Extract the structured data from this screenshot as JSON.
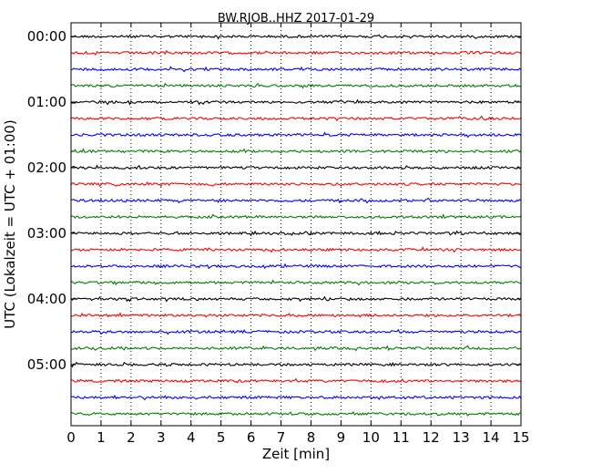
{
  "chart_data": {
    "type": "line",
    "title": "BW.RJOB..HHZ 2017-01-29",
    "xlabel": "Zeit  [min]",
    "ylabel": "UTC (Lokalzeit = UTC + 01:00)",
    "xlim": [
      0,
      15
    ],
    "xticks": [
      "0",
      "1",
      "2",
      "3",
      "4",
      "5",
      "6",
      "7",
      "8",
      "9",
      "10",
      "11",
      "12",
      "13",
      "14",
      "15"
    ],
    "y_row_minutes": 15,
    "y_ticks": [
      {
        "label": "00:00",
        "minutes": 0
      },
      {
        "label": "01:00",
        "minutes": 60
      },
      {
        "label": "02:00",
        "minutes": 120
      },
      {
        "label": "03:00",
        "minutes": 180
      },
      {
        "label": "04:00",
        "minutes": 240
      },
      {
        "label": "05:00",
        "minutes": 300
      }
    ],
    "grid": "x-dotted",
    "colors": [
      "#000000",
      "#ff0000",
      "#0000ff",
      "#008000"
    ],
    "series": [
      {
        "start": "00:00",
        "color": "#000000"
      },
      {
        "start": "00:15",
        "color": "#ff0000"
      },
      {
        "start": "00:30",
        "color": "#0000ff"
      },
      {
        "start": "00:45",
        "color": "#008000"
      },
      {
        "start": "01:00",
        "color": "#000000"
      },
      {
        "start": "01:15",
        "color": "#ff0000"
      },
      {
        "start": "01:30",
        "color": "#0000ff"
      },
      {
        "start": "01:45",
        "color": "#008000"
      },
      {
        "start": "02:00",
        "color": "#000000"
      },
      {
        "start": "02:15",
        "color": "#ff0000"
      },
      {
        "start": "02:30",
        "color": "#0000ff"
      },
      {
        "start": "02:45",
        "color": "#008000"
      },
      {
        "start": "03:00",
        "color": "#000000"
      },
      {
        "start": "03:15",
        "color": "#ff0000"
      },
      {
        "start": "03:30",
        "color": "#0000ff"
      },
      {
        "start": "03:45",
        "color": "#008000"
      },
      {
        "start": "04:00",
        "color": "#000000"
      },
      {
        "start": "04:15",
        "color": "#ff0000"
      },
      {
        "start": "04:30",
        "color": "#0000ff"
      },
      {
        "start": "04:45",
        "color": "#008000"
      },
      {
        "start": "05:00",
        "color": "#000000"
      },
      {
        "start": "05:15",
        "color": "#ff0000"
      },
      {
        "start": "05:30",
        "color": "#0000ff"
      },
      {
        "start": "05:45",
        "color": "#008000"
      }
    ]
  }
}
